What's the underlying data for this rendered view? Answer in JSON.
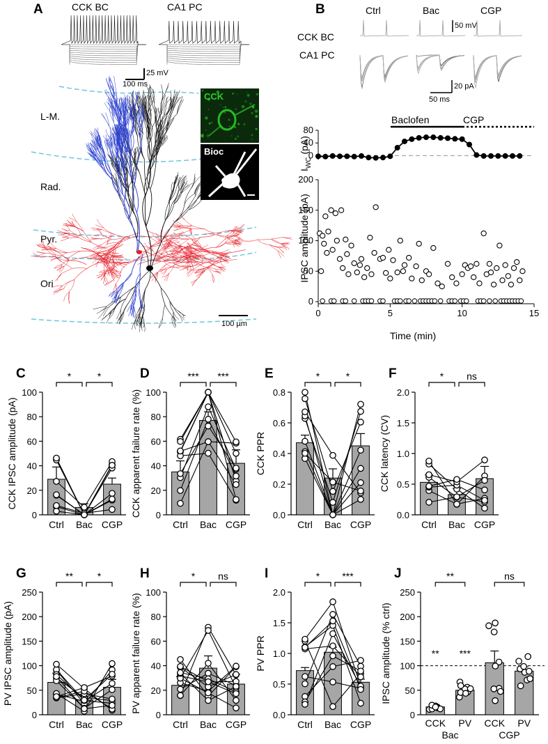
{
  "panelA": {
    "label": "A",
    "trace_titles": [
      "CCK BC",
      "CA1 PC"
    ],
    "scale_v": "25 mV",
    "scale_t": "100 ms",
    "layers": [
      "L-M.",
      "Rad.",
      "Pyr.",
      "Ori"
    ],
    "inset_top": "CCK",
    "inset_bottom": "Bioc",
    "scale_um": "100 µm",
    "colors": {
      "dendrite": "#2b3fcf",
      "axon": "#e8202a",
      "layer_line": "#6ec6de",
      "cck_green": "#2bd12b"
    }
  },
  "panelB": {
    "label": "B",
    "conditions": [
      "Ctrl",
      "Bac",
      "CGP"
    ],
    "row_labels": [
      "CCK BC",
      "CA1 PC"
    ],
    "scale_v": "50 mV",
    "scale_i": "20 pA",
    "scale_t": "50 ms",
    "drug_bars": [
      "Baclofen",
      "CGP"
    ],
    "iwc_ylabel_main": "I",
    "iwc_ylabel_sub": "WC",
    "iwc_ylabel_unit": " (pA)",
    "amp_ylabel": "IPSC amplitude (pA)",
    "xlabel": "Time (min)",
    "iwc_yticks": [
      "80",
      "40",
      "0"
    ],
    "amp_yticks": [
      "200",
      "150",
      "100",
      "50",
      "0"
    ],
    "xticks": [
      "0",
      "5",
      "10",
      "15"
    ]
  },
  "chart_data": [
    {
      "type": "line",
      "panel": "B-Iwc",
      "title": "",
      "xlabel": "Time (min)",
      "ylabel": "IWC (pA)",
      "x": [
        0,
        0.5,
        1,
        1.5,
        2,
        2.5,
        3,
        3.5,
        4,
        4.5,
        5,
        5.5,
        6,
        6.5,
        7,
        7.5,
        8,
        8.5,
        9,
        9.5,
        10,
        10.5,
        11,
        11.5,
        12,
        12.5,
        13,
        13.5,
        14
      ],
      "values": [
        -2,
        -3,
        -1,
        -2,
        -2,
        -3,
        -1,
        -6,
        -7,
        -6,
        -2,
        25,
        45,
        52,
        56,
        58,
        58,
        56,
        55,
        53,
        52,
        35,
        2,
        -1,
        -1,
        -1,
        -1,
        -1,
        -1
      ],
      "xlim": [
        0,
        15
      ],
      "ylim": [
        -10,
        80
      ]
    },
    {
      "type": "scatter",
      "panel": "B-IPSC",
      "title": "",
      "xlabel": "Time (min)",
      "ylabel": "IPSC amplitude (pA)",
      "xlim": [
        0,
        15
      ],
      "ylim": [
        0,
        200
      ],
      "x": [
        0.1,
        0.2,
        0.3,
        0.4,
        0.5,
        0.6,
        0.7,
        0.9,
        1.0,
        1.2,
        1.3,
        1.5,
        1.6,
        1.7,
        1.9,
        2.0,
        2.1,
        2.3,
        2.5,
        2.7,
        2.9,
        3.0,
        3.2,
        3.4,
        3.6,
        3.7,
        3.9,
        4.0,
        4.3,
        4.5,
        4.7,
        4.9,
        5.0,
        5.2,
        5.5,
        5.7,
        5.9,
        6.0,
        6.3,
        6.5,
        6.8,
        7.0,
        7.2,
        7.5,
        7.7,
        8.0,
        8.3,
        8.6,
        9.0,
        9.3,
        9.6,
        10.0,
        10.2,
        10.4,
        10.6,
        10.8,
        11.0,
        11.2,
        11.5,
        11.7,
        11.9,
        12.0,
        12.2,
        12.4,
        12.6,
        12.8,
        13.0,
        13.2,
        13.4,
        13.6,
        13.8,
        14.0,
        14.2
      ],
      "values": [
        112,
        50,
        108,
        95,
        140,
        80,
        115,
        150,
        85,
        145,
        100,
        70,
        150,
        55,
        102,
        78,
        45,
        92,
        63,
        48,
        60,
        70,
        40,
        55,
        105,
        45,
        80,
        155,
        70,
        72,
        47,
        85,
        38,
        68,
        48,
        100,
        50,
        60,
        72,
        38,
        58,
        95,
        35,
        50,
        45,
        88,
        30,
        25,
        62,
        40,
        30,
        45,
        60,
        55,
        58,
        40,
        62,
        30,
        112,
        45,
        62,
        48,
        28,
        55,
        92,
        35,
        60,
        42,
        28,
        55,
        65,
        35,
        50
      ]
    },
    {
      "type": "bar",
      "panel": "C",
      "categories": [
        "Ctrl",
        "Bac",
        "CGP"
      ],
      "values": [
        29,
        6,
        25
      ],
      "errors": [
        10,
        3,
        5
      ],
      "ylabel": "CCK IPSC amplitude (pA)",
      "ylim": [
        0,
        100
      ],
      "significance": [
        "*",
        "*"
      ]
    },
    {
      "type": "bar",
      "panel": "D",
      "categories": [
        "Ctrl",
        "Bac",
        "CGP"
      ],
      "values": [
        35,
        77,
        42
      ],
      "errors": [
        9,
        7,
        11
      ],
      "ylabel": "CCK apparent failure rate (%)",
      "ylim": [
        0,
        100
      ],
      "significance": [
        "***",
        "***"
      ]
    },
    {
      "type": "bar",
      "panel": "E",
      "categories": [
        "Ctrl",
        "Bac",
        "CGP"
      ],
      "values": [
        0.47,
        0.24,
        0.45
      ],
      "errors": [
        0.05,
        0.06,
        0.08
      ],
      "ylabel": "CCK PPR",
      "ylim": [
        0,
        0.8
      ],
      "significance": [
        "*",
        "*"
      ]
    },
    {
      "type": "bar",
      "panel": "F",
      "categories": [
        "Ctrl",
        "Bac",
        "CGP"
      ],
      "values": [
        0.53,
        0.33,
        0.59
      ],
      "errors": [
        0.12,
        0.1,
        0.2
      ],
      "ylabel": "CCK latency (CV)",
      "ylim": [
        0,
        2
      ],
      "significance": [
        "*",
        "ns"
      ]
    },
    {
      "type": "bar",
      "panel": "G",
      "categories": [
        "Ctrl",
        "Bac",
        "CGP"
      ],
      "values": [
        66,
        30,
        56
      ],
      "errors": [
        19,
        8,
        16
      ],
      "ylabel": "PV IPSC amplitude (pA)",
      "ylim": [
        0,
        250
      ],
      "significance": [
        "**",
        "*"
      ]
    },
    {
      "type": "bar",
      "panel": "H",
      "categories": [
        "Ctrl",
        "Bac",
        "CGP"
      ],
      "values": [
        24,
        38,
        25
      ],
      "errors": [
        7,
        10,
        8
      ],
      "ylabel": "PV apparent failure rate (%)",
      "ylim": [
        0,
        100
      ],
      "significance": [
        "*",
        "ns"
      ]
    },
    {
      "type": "bar",
      "panel": "I",
      "categories": [
        "Ctrl",
        "Bac",
        "CGP"
      ],
      "values": [
        0.72,
        1.02,
        0.53
      ],
      "errors": [
        0.05,
        0.08,
        0.05
      ],
      "ylabel": "PV PPR",
      "ylim": [
        0,
        2
      ],
      "significance": [
        "*",
        "***"
      ]
    },
    {
      "type": "bar",
      "panel": "J",
      "categories": [
        "CCK Bac",
        "PV Bac",
        "CCK CGP",
        "PV CGP"
      ],
      "values": [
        16,
        50,
        106,
        89
      ],
      "errors": [
        5,
        5,
        24,
        9
      ],
      "ylabel": "IPSC amplitude (% ctrl)",
      "ylim": [
        0,
        250
      ],
      "significance": [
        "**",
        "ns"
      ],
      "point_significance": [
        "**",
        "***",
        "",
        ""
      ],
      "reference_line": 100
    }
  ],
  "panels": {
    "C": {
      "label": "C",
      "yticks": [
        "100",
        "80",
        "60",
        "40",
        "20",
        "0"
      ]
    },
    "D": {
      "label": "D",
      "yticks": [
        "100",
        "80",
        "60",
        "40",
        "20",
        "0"
      ]
    },
    "E": {
      "label": "E",
      "yticks": [
        "0.8",
        "0.6",
        "0.4",
        "0.2",
        "0.0"
      ]
    },
    "F": {
      "label": "F",
      "yticks": [
        "2.0",
        "1.5",
        "1.0",
        "0.5",
        "0.0"
      ]
    },
    "G": {
      "label": "G",
      "yticks": [
        "250",
        "200",
        "150",
        "100",
        "50",
        "0"
      ]
    },
    "H": {
      "label": "H",
      "yticks": [
        "100",
        "80",
        "60",
        "40",
        "20",
        "0"
      ]
    },
    "I": {
      "label": "I",
      "yticks": [
        "2.0",
        "1.5",
        "1.0",
        "0.5",
        "0.0"
      ]
    },
    "J": {
      "label": "J",
      "yticks": [
        "250",
        "200",
        "150",
        "100",
        "50",
        "0"
      ],
      "xtick_top": [
        "CCK",
        "PV",
        "CCK",
        "PV"
      ],
      "xtick_bottom": [
        "Bac",
        "CGP"
      ]
    }
  }
}
